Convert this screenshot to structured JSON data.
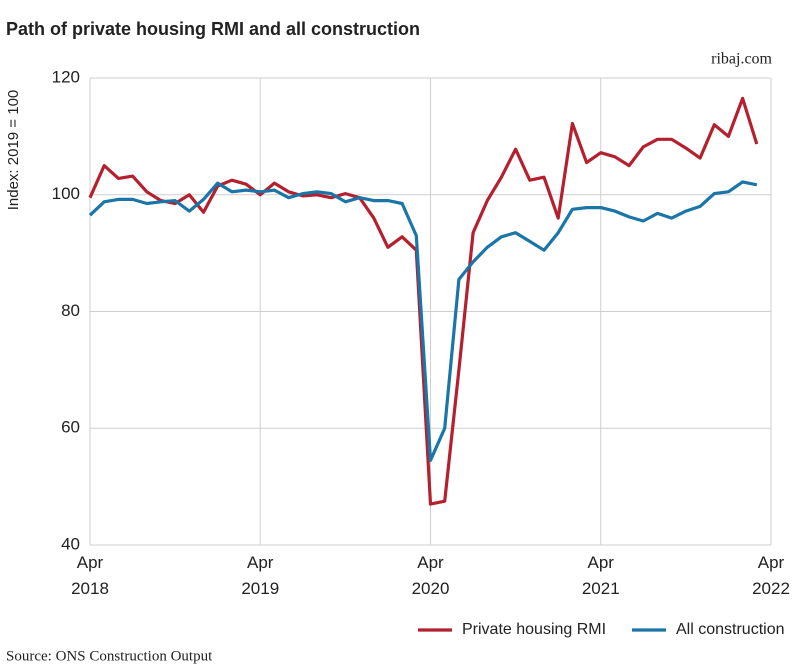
{
  "chart_data": {
    "type": "line",
    "title": "Path of private housing RMI and all construction",
    "credit": "ribaj.com",
    "source": "Source: ONS Construction Output",
    "y_label": "Index: 2019 = 100",
    "categories": [
      "Apr\n2018",
      null,
      null,
      null,
      null,
      null,
      null,
      null,
      null,
      null,
      null,
      null,
      "Apr\n2019",
      null,
      null,
      null,
      null,
      null,
      null,
      null,
      null,
      null,
      null,
      null,
      "Apr\n2020",
      null,
      null,
      null,
      null,
      null,
      null,
      null,
      null,
      null,
      null,
      null,
      "Apr\n2021",
      null,
      null,
      null,
      null,
      null,
      null,
      null,
      null,
      null,
      null,
      null,
      "Apr\n2022"
    ],
    "series": [
      {
        "name": "Private housing RMI",
        "color": "#b5202e",
        "values": [
          99.5,
          105,
          102.8,
          103.2,
          100.5,
          99,
          98.5,
          100,
          97,
          101.5,
          102.5,
          101.8,
          100,
          102,
          100.5,
          99.8,
          100,
          99.5,
          100.2,
          99.5,
          96,
          91,
          92.8,
          90.5,
          47,
          47.5,
          70,
          93.5,
          99,
          103,
          107.8,
          102.5,
          103,
          96,
          112.2,
          105.5,
          107.2,
          106.5,
          105,
          108.2,
          109.5,
          109.5,
          108,
          106.3,
          112,
          110,
          116.5,
          108.7,
          null
        ]
      },
      {
        "name": "All construction",
        "color": "#1a75a8",
        "values": [
          96.5,
          98.8,
          99.2,
          99.2,
          98.5,
          98.8,
          99,
          97.2,
          99.2,
          102,
          100.5,
          100.8,
          100.5,
          100.8,
          99.5,
          100.2,
          100.5,
          100.2,
          98.8,
          99.5,
          99,
          99,
          98.5,
          93,
          54.5,
          60,
          85.5,
          88.5,
          91,
          92.8,
          93.5,
          92,
          90.5,
          93.5,
          97.5,
          97.8,
          97.8,
          97.2,
          96.2,
          95.5,
          96.8,
          96,
          97.2,
          98,
          100.2,
          100.5,
          102.2,
          101.7,
          null
        ]
      }
    ],
    "ylim": [
      40,
      120
    ],
    "yticks": [
      40,
      60,
      80,
      100,
      120
    ],
    "grid": true,
    "legend": "bottom-right"
  }
}
